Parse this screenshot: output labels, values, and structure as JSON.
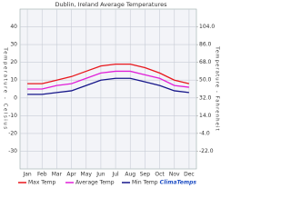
{
  "chart_data": {
    "type": "line",
    "title": "Dublin, Ireland  Average Temperatures",
    "y_label": "Temperature - Celsius",
    "y2_label": "Temperature - Fahrenheit",
    "categories": [
      "Jan",
      "Feb",
      "Mar",
      "Apr",
      "May",
      "Jun",
      "Jul",
      "Aug",
      "Sep",
      "Oct",
      "Nov",
      "Dec"
    ],
    "series": [
      {
        "name": "Max Temp",
        "color": "#e8161b",
        "values": [
          8,
          8,
          10,
          12,
          15,
          18,
          19,
          19,
          17,
          14,
          10,
          8
        ]
      },
      {
        "name": "Average Temp",
        "color": "#e020d8",
        "values": [
          5,
          5,
          7,
          8,
          11,
          14,
          15,
          15,
          13,
          11,
          7,
          6
        ]
      },
      {
        "name": "Min Temp",
        "color": "#16168a",
        "values": [
          2,
          2,
          3,
          4,
          7,
          10,
          11,
          11,
          9,
          7,
          4,
          3
        ]
      }
    ],
    "ylim": [
      -40,
      50
    ],
    "yticks": [
      -30,
      -20,
      -10,
      0,
      10,
      20,
      30,
      40
    ],
    "y2lim": [
      -40,
      122
    ],
    "y2ticks": [
      {
        "value": -22,
        "label": "-22.0"
      },
      {
        "value": -4,
        "label": "-4.0"
      },
      {
        "value": 14,
        "label": "14.0"
      },
      {
        "value": 32,
        "label": "32.0"
      },
      {
        "value": 50,
        "label": "50.0"
      },
      {
        "value": 68,
        "label": "68.0"
      },
      {
        "value": 86,
        "label": "86.0"
      },
      {
        "value": 104,
        "label": "104.0"
      }
    ],
    "grid": true,
    "source": "ClimaTemps"
  }
}
